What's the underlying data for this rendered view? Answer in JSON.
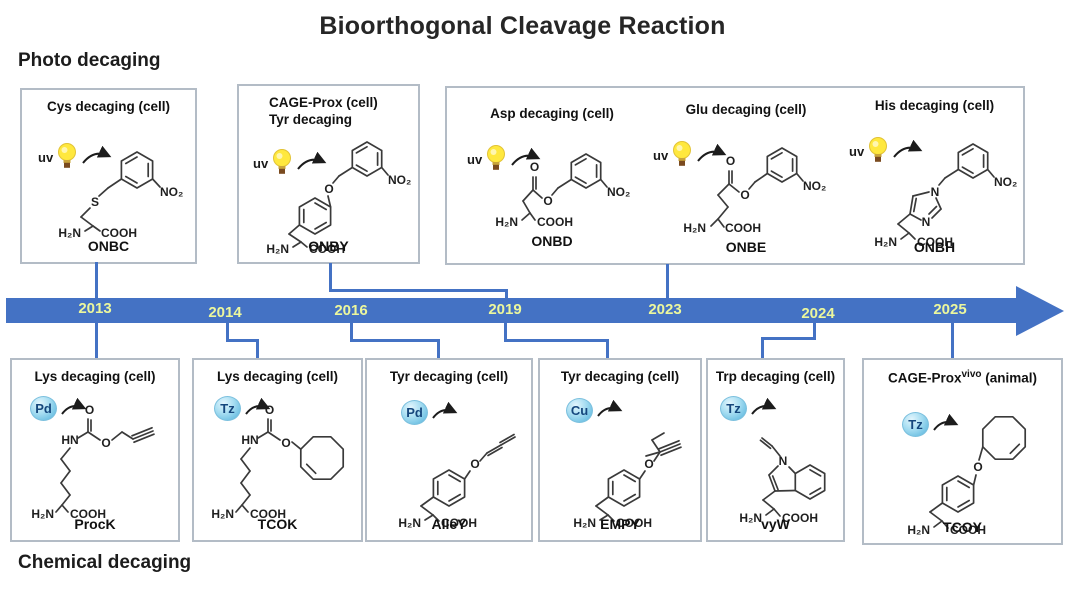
{
  "title": "Bioorthogonal Cleavage Reaction",
  "section_top": "Photo decaging",
  "section_bottom": "Chemical decaging",
  "timeline": {
    "years": [
      "2013",
      "2014",
      "2016",
      "2019",
      "2023",
      "2024",
      "2025"
    ]
  },
  "colors": {
    "band": "#4472c4",
    "year_text": "#ecf79d",
    "box_border": "#b3bcc6",
    "chip_text": "#15477d",
    "bulb_yellow": "#ffe83e"
  },
  "atoms": {
    "h2n": "H₂N",
    "cooh": "COOH",
    "no2": "NO₂",
    "s": "S",
    "o": "O",
    "hn": "HN",
    "n": "N"
  },
  "photo_boxes": [
    {
      "title": "Cys decaging (cell)",
      "trigger": "uv",
      "name": "ONBC"
    },
    {
      "title": "CAGE-Prox (cell)",
      "title2": "Tyr decaging",
      "trigger": "uv",
      "name": "ONBY"
    },
    {
      "title": "Asp decaging (cell)",
      "trigger": "uv",
      "name": "ONBD"
    },
    {
      "title": "Glu decaging (cell)",
      "trigger": "uv",
      "name": "ONBE"
    },
    {
      "title": "His decaging (cell)",
      "trigger": "uv",
      "name": "ONBH"
    }
  ],
  "chem_boxes": [
    {
      "title": "Lys decaging (cell)",
      "trigger": "Pd",
      "name": "ProcK"
    },
    {
      "title": "Lys decaging (cell)",
      "trigger": "Tz",
      "name": "TCOK"
    },
    {
      "title": "Tyr decaging (cell)",
      "trigger": "Pd",
      "name": "AlleY"
    },
    {
      "title": "Tyr decaging (cell)",
      "trigger": "Cu",
      "name": "EMPY"
    },
    {
      "title": "Trp decaging (cell)",
      "trigger": "Tz",
      "name": "vyW"
    },
    {
      "title_main": "CAGE-Prox",
      "title_sup": "vivo",
      "title_tail": " (animal)",
      "trigger": "Tz",
      "name": "TCOY"
    }
  ]
}
